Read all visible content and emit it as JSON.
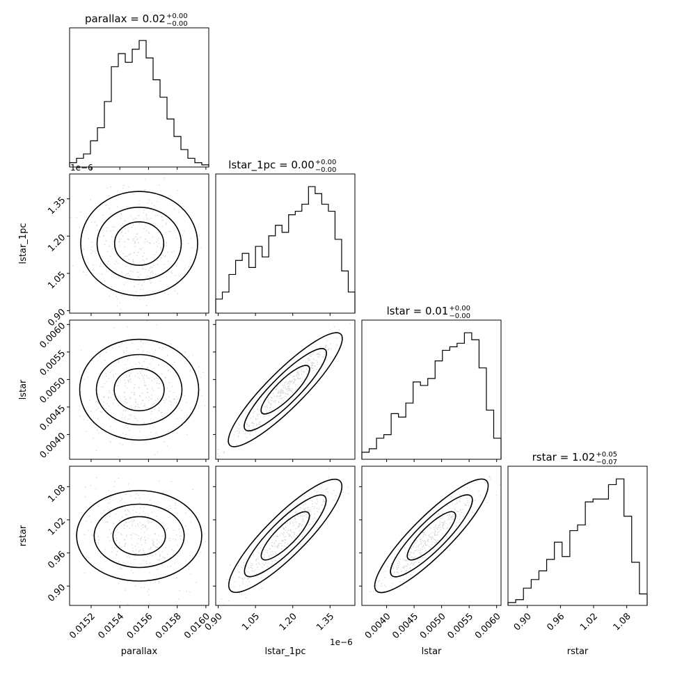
{
  "chart_data": {
    "type": "corner",
    "parameters": [
      "parallax",
      "lstar_1pc",
      "lstar",
      "rstar"
    ],
    "axis_labels": [
      "parallax",
      "lstar_1pc",
      "lstar",
      "rstar"
    ],
    "ranges": [
      [
        0.01505,
        0.01602
      ],
      [
        0.89,
        1.45
      ],
      [
        0.00355,
        0.00608
      ],
      [
        0.865,
        1.117
      ]
    ],
    "ticks": {
      "parallax": {
        "values": [
          0.0152,
          0.0154,
          0.0156,
          0.0158,
          0.016
        ],
        "labels": [
          "0.0152",
          "0.0154",
          "0.0156",
          "0.0158",
          "0.0160"
        ]
      },
      "lstar_1pc": {
        "values": [
          0.9,
          1.05,
          1.2,
          1.35
        ],
        "labels": [
          "0.90",
          "1.05",
          "1.20",
          "1.35"
        ],
        "offset_text": "1e−6"
      },
      "lstar": {
        "values": [
          0.004,
          0.0045,
          0.005,
          0.0055,
          0.006
        ],
        "labels": [
          "0.0040",
          "0.0045",
          "0.0050",
          "0.0055",
          "0.0060"
        ]
      },
      "rstar": {
        "values": [
          0.9,
          0.96,
          1.02,
          1.08
        ],
        "labels": [
          "0.90",
          "0.96",
          "1.02",
          "1.08"
        ]
      }
    },
    "titles": [
      {
        "prefix": "parallax = 0.02",
        "sup": "+0.00",
        "sub": "−0.00"
      },
      {
        "prefix": "lstar_1pc = 0.00",
        "sup": "+0.00",
        "sub": "−0.00"
      },
      {
        "prefix": "lstar = 0.01",
        "sup": "+0.00",
        "sub": "−0.00"
      },
      {
        "prefix": "rstar = 1.02",
        "sup": "+0.05",
        "sub": "−0.07"
      }
    ],
    "histograms": [
      {
        "counts": [
          1,
          2,
          3,
          6,
          9,
          15,
          23,
          26,
          24,
          27,
          29,
          25,
          20,
          16,
          11,
          7,
          4,
          2,
          1,
          0.5
        ]
      },
      {
        "counts": [
          4,
          6,
          11,
          15,
          17,
          13,
          19,
          16,
          22,
          25,
          23,
          28,
          29,
          31,
          36,
          34,
          31,
          29,
          21,
          12,
          6
        ]
      },
      {
        "counts": [
          2,
          3,
          6,
          7,
          13,
          12,
          16,
          22,
          21,
          23,
          28,
          31,
          32,
          33,
          36,
          34,
          26,
          14,
          6
        ]
      },
      {
        "counts": [
          1,
          2,
          6,
          9,
          12,
          16,
          22,
          17,
          26,
          28,
          36,
          37,
          37,
          42,
          44,
          31,
          15,
          4
        ]
      }
    ],
    "correlations": [
      [
        1,
        0.0,
        0.05,
        -0.2
      ],
      [
        0.0,
        1,
        0.98,
        0.93
      ],
      [
        0.05,
        0.98,
        1,
        0.95
      ],
      [
        -0.2,
        0.93,
        0.95,
        1
      ]
    ],
    "grid": false
  }
}
